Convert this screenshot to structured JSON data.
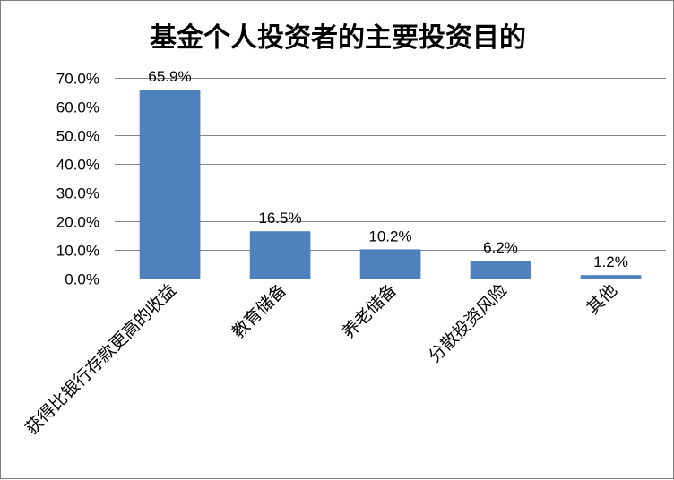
{
  "chart_data": {
    "type": "bar",
    "title": "基金个人投资者的主要投资目的",
    "categories": [
      "获得比银行存款更高的收益",
      "教育储备",
      "养老储备",
      "分散投资风险",
      "其他"
    ],
    "values": [
      65.9,
      16.5,
      10.2,
      6.2,
      1.2
    ],
    "value_labels": [
      "65.9%",
      "16.5%",
      "10.2%",
      "6.2%",
      "1.2%"
    ],
    "y_ticks": [
      0,
      10,
      20,
      30,
      40,
      50,
      60,
      70
    ],
    "y_tick_labels": [
      "0.0%",
      "10.0%",
      "20.0%",
      "30.0%",
      "40.0%",
      "50.0%",
      "60.0%",
      "70.0%"
    ],
    "ylim": [
      0,
      70
    ],
    "xlabel": "",
    "ylabel": "",
    "grid": true,
    "legend": "none",
    "bar_color": "#4F81BD",
    "grid_color": "#868686"
  }
}
